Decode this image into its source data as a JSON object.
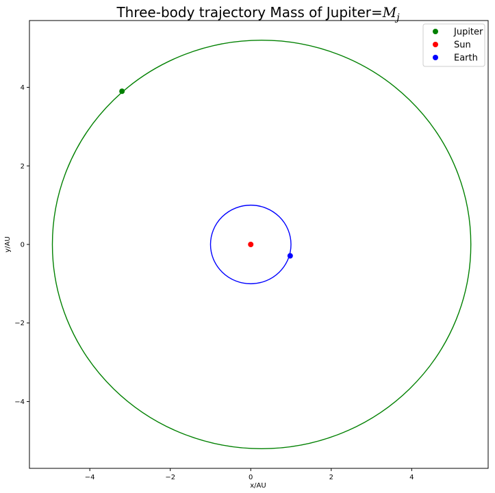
{
  "chart_data": {
    "type": "scatter",
    "title": "Three-body trajectory  Mass of Jupiter=",
    "title_math": "M",
    "title_math_sub": "j",
    "xlabel": "x/AU",
    "ylabel": "y/AU",
    "xlim": [
      -5.5,
      5.9
    ],
    "ylim": [
      -5.7,
      5.7
    ],
    "xticks": [
      -4,
      -2,
      0,
      2,
      4
    ],
    "xtick_labels": [
      "−4",
      "−2",
      "0",
      "2",
      "4"
    ],
    "yticks": [
      -4,
      -2,
      0,
      2,
      4
    ],
    "ytick_labels": [
      "−4",
      "−2",
      "0",
      "2",
      "4"
    ],
    "grid": false,
    "legend_position": "top-right",
    "orbits": [
      {
        "body": "Jupiter",
        "color": "#008000",
        "center_x": 0.27,
        "center_y": 0.0,
        "radius_x": 5.2,
        "radius_y": 5.2
      },
      {
        "body": "Earth",
        "color": "#0000ff",
        "center_x": 0.0,
        "center_y": 0.0,
        "radius_x": 1.0,
        "radius_y": 1.0
      }
    ],
    "series": [
      {
        "name": "Jupiter",
        "color": "#008000",
        "x": -3.2,
        "y": 3.9
      },
      {
        "name": "Sun",
        "color": "#ff0000",
        "x": 0.0,
        "y": 0.0
      },
      {
        "name": "Earth",
        "color": "#0000ff",
        "x": 0.98,
        "y": -0.29
      }
    ]
  }
}
